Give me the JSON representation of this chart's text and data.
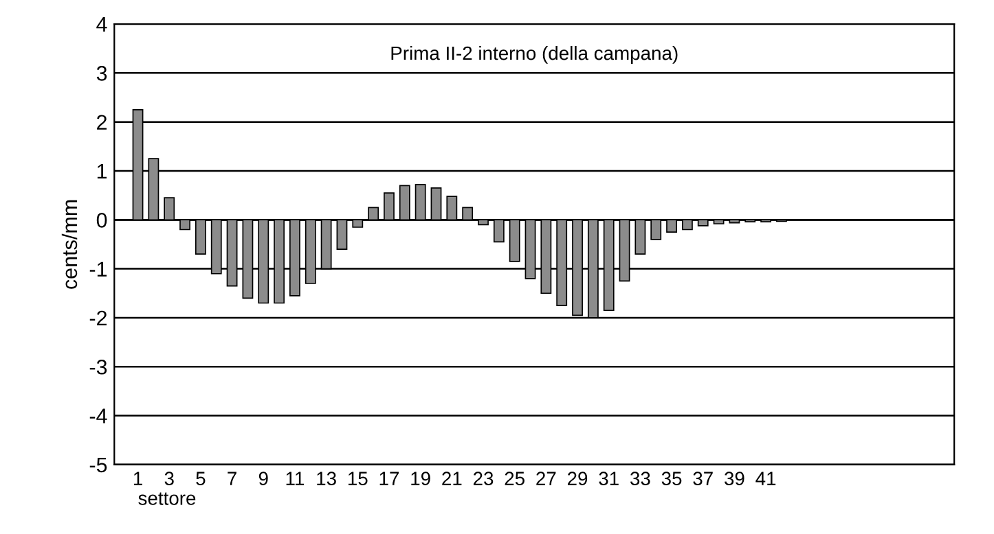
{
  "chart_data": {
    "type": "bar",
    "title": "Prima II-2 interno (della campana)",
    "xlabel": "settore",
    "ylabel": "cents/mm",
    "categories": [
      "1",
      null,
      "3",
      null,
      "5",
      null,
      "7",
      null,
      "9",
      null,
      "11",
      null,
      "13",
      null,
      "15",
      null,
      "17",
      null,
      "19",
      null,
      "21",
      null,
      "23",
      null,
      "25",
      null,
      "27",
      null,
      "29",
      null,
      "31",
      null,
      "33",
      null,
      "35",
      null,
      "37",
      null,
      "39",
      null,
      "41",
      null
    ],
    "values": [
      2.25,
      1.25,
      0.45,
      -0.2,
      -0.7,
      -1.1,
      -1.35,
      -1.6,
      -1.7,
      -1.7,
      -1.55,
      -1.3,
      -1.0,
      -0.6,
      -0.15,
      0.25,
      0.55,
      0.7,
      0.72,
      0.65,
      0.48,
      0.25,
      -0.1,
      -0.45,
      -0.85,
      -1.2,
      -1.5,
      -1.75,
      -1.95,
      -2.0,
      -1.85,
      -1.25,
      -0.7,
      -0.4,
      -0.25,
      -0.2,
      -0.12,
      -0.08,
      -0.06,
      -0.04,
      -0.04,
      -0.03
    ],
    "color": "#8c8c8c",
    "ylim": [
      -5,
      4
    ],
    "yticks": [
      -5,
      -4,
      -3,
      -2,
      -1,
      0,
      1,
      2,
      3,
      4
    ],
    "grid": "y",
    "legend": false
  }
}
